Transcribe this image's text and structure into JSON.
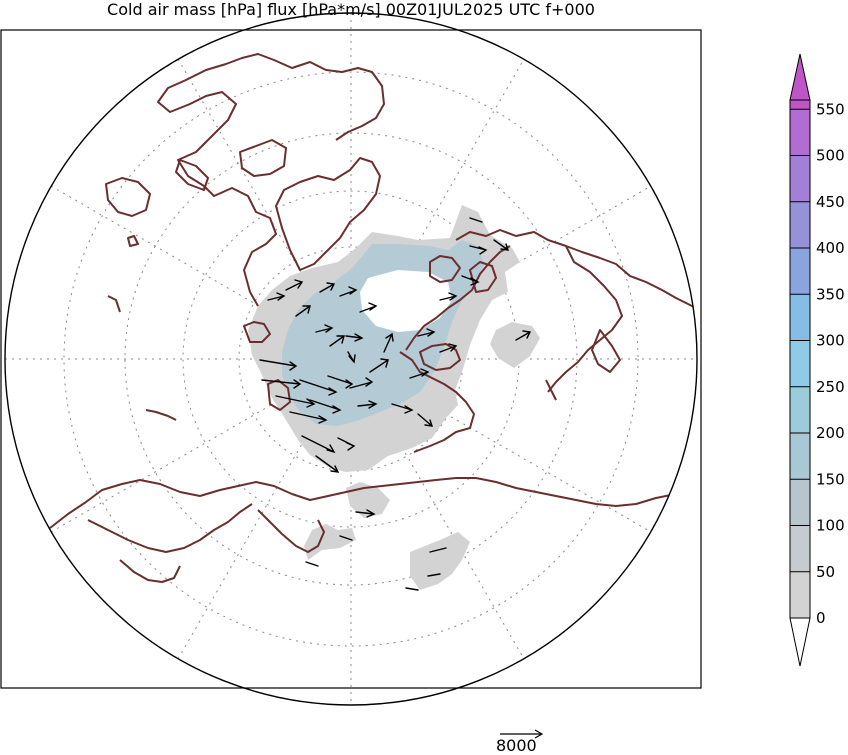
{
  "title": "Cold air mass [hPa] flux [hPa*m/s] 00Z01JUL2025 UTC f+000",
  "colorbar": {
    "levels": [
      0,
      50,
      100,
      150,
      200,
      250,
      300,
      350,
      400,
      450,
      500,
      550
    ],
    "labels": [
      "0",
      "50",
      "100",
      "150",
      "200",
      "250",
      "300",
      "350",
      "400",
      "450",
      "500",
      "550"
    ],
    "colors": [
      "#d3d3d3",
      "#c4cccf",
      "#b6c6cc",
      "#a9c8d5",
      "#9ccbdc",
      "#8fcbe6",
      "#85bde6",
      "#8aa4df",
      "#9692d9",
      "#a37fd6",
      "#b26dd5",
      "#bf55c9"
    ],
    "under_color": "#ffffff",
    "over_color": "#bf55c9"
  },
  "map": {
    "projection": "north polar stereographic",
    "coastline_color": "#6b2e2e",
    "graticule_color": "#888888",
    "field_fill_low": "#d3d3d3",
    "field_fill_high": "#a9c8d5"
  },
  "reference_vector": {
    "label": "8000"
  }
}
